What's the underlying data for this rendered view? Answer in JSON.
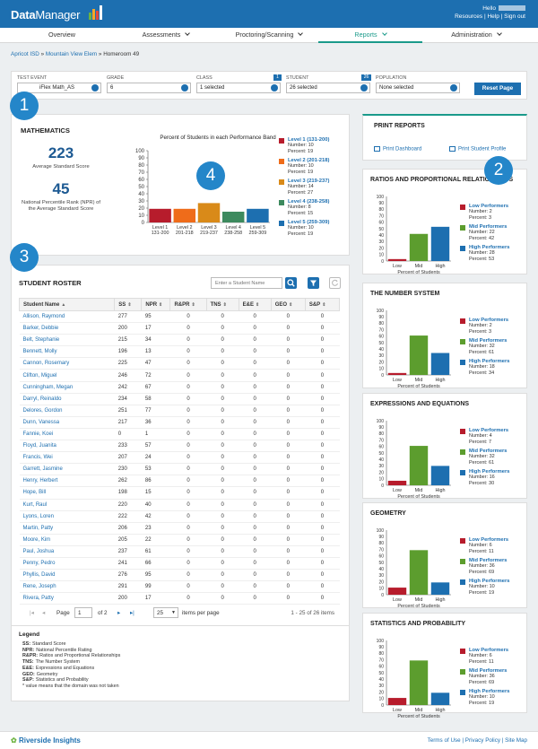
{
  "header": {
    "logo_data": "Data",
    "logo_manager": "Manager",
    "hello": "Hello",
    "links": [
      "Resources",
      "Help",
      "Sign out"
    ]
  },
  "nav": {
    "items": [
      {
        "label": "Overview"
      },
      {
        "label": "Assessments"
      },
      {
        "label": "Proctoring/Scanning"
      },
      {
        "label": "Reports"
      },
      {
        "label": "Administration"
      }
    ],
    "active": "Reports"
  },
  "breadcrumb": {
    "parts": [
      "Apricot ISD",
      "Mountain View Elem",
      "Homeroom 49"
    ],
    "sep": "»"
  },
  "filters": {
    "test_event": {
      "label": "TEST EVENT",
      "value": "iFlex Math_AS"
    },
    "grade": {
      "label": "GRADE",
      "value": "6"
    },
    "class": {
      "label": "CLASS",
      "value": "1 selected",
      "badge": "1"
    },
    "student": {
      "label": "STUDENT",
      "value": "26 selected",
      "badge": "26"
    },
    "population": {
      "label": "POPULATION",
      "value": "None selected"
    },
    "reset_label": "Reset Page"
  },
  "callouts": [
    "1",
    "2",
    "3",
    "4"
  ],
  "math": {
    "title": "MATHEMATICS",
    "avg_score": "223",
    "avg_score_caption": "Average Standard Score",
    "npr": "45",
    "npr_caption": "National Percentile Rank (NPR) of the Average Standard Score",
    "chart_title": "Percent of Students in each Performance Band"
  },
  "chart_data": [
    {
      "type": "bar",
      "title": "Percent of Students in each Performance Band",
      "categories": [
        "Level 1 131-200",
        "Level 2 201-218",
        "Level 3 219-237",
        "Level 4 238-258",
        "Level 5 259-309"
      ],
      "cat_line1": [
        "Level 1",
        "Level 2",
        "Level 3",
        "Level 4",
        "Level 5"
      ],
      "cat_line2": [
        "131-200",
        "201-218",
        "219-237",
        "238-258",
        "259-309"
      ],
      "values": [
        19,
        19,
        27,
        15,
        19
      ],
      "colors": [
        "#b71c2c",
        "#ef6c1a",
        "#d98a19",
        "#3d8a5e",
        "#1d6fb0"
      ],
      "ylim": [
        0,
        100
      ],
      "yticks": [
        0,
        10,
        20,
        30,
        40,
        50,
        60,
        70,
        80,
        90,
        100
      ],
      "legend": [
        {
          "name": "Level 1 (131-200)",
          "number": "Number: 10",
          "percent": "Percent: 19"
        },
        {
          "name": "Level 2 (201-218)",
          "number": "Number: 10",
          "percent": "Percent: 19"
        },
        {
          "name": "Level 3 (219-237)",
          "number": "Number: 14",
          "percent": "Percent: 27"
        },
        {
          "name": "Level 4 (238-258)",
          "number": "Number: 8",
          "percent": "Percent: 15"
        },
        {
          "name": "Level 5 (259-309)",
          "number": "Number: 10",
          "percent": "Percent: 19"
        }
      ]
    },
    {
      "type": "bar",
      "title": "RATIOS AND PROPORTIONAL RELATIONSHIPS",
      "categories": [
        "Low",
        "Mid",
        "High"
      ],
      "values": [
        3,
        42,
        53
      ],
      "xlabel": "Percent of Students",
      "ylim": [
        0,
        100
      ],
      "legend": [
        {
          "name": "Low Performers",
          "number": "Number: 2",
          "percent": "Percent: 3"
        },
        {
          "name": "Mid Performers",
          "number": "Number: 22",
          "percent": "Percent: 42"
        },
        {
          "name": "High Performers",
          "number": "Number: 28",
          "percent": "Percent: 53"
        }
      ]
    },
    {
      "type": "bar",
      "title": "THE NUMBER SYSTEM",
      "categories": [
        "Low",
        "Mid",
        "High"
      ],
      "values": [
        3,
        61,
        34
      ],
      "xlabel": "Percent of Students",
      "ylim": [
        0,
        100
      ],
      "legend": [
        {
          "name": "Low Performers",
          "number": "Number: 2",
          "percent": "Percent: 3"
        },
        {
          "name": "Mid Performers",
          "number": "Number: 32",
          "percent": "Percent: 61"
        },
        {
          "name": "High Performers",
          "number": "Number: 18",
          "percent": "Percent: 34"
        }
      ]
    },
    {
      "type": "bar",
      "title": "EXPRESSIONS AND EQUATIONS",
      "categories": [
        "Low",
        "Mid",
        "High"
      ],
      "values": [
        7,
        61,
        30
      ],
      "xlabel": "Percent of Students",
      "ylim": [
        0,
        100
      ],
      "legend": [
        {
          "name": "Low Performers",
          "number": "Number: 4",
          "percent": "Percent: 7"
        },
        {
          "name": "Mid Performers",
          "number": "Number: 32",
          "percent": "Percent: 61"
        },
        {
          "name": "High Performers",
          "number": "Number: 16",
          "percent": "Percent: 30"
        }
      ]
    },
    {
      "type": "bar",
      "title": "GEOMETRY",
      "categories": [
        "Low",
        "Mid",
        "High"
      ],
      "values": [
        11,
        69,
        19
      ],
      "xlabel": "Percent of Students",
      "ylim": [
        0,
        100
      ],
      "legend": [
        {
          "name": "Low Performers",
          "number": "Number: 6",
          "percent": "Percent: 11"
        },
        {
          "name": "Mid Performers",
          "number": "Number: 36",
          "percent": "Percent: 69"
        },
        {
          "name": "High Performers",
          "number": "Number: 10",
          "percent": "Percent: 19"
        }
      ]
    },
    {
      "type": "bar",
      "title": "STATISTICS AND PROBABILITY",
      "categories": [
        "Low",
        "Mid",
        "High"
      ],
      "values": [
        11,
        69,
        19
      ],
      "xlabel": "Percent of Students",
      "ylim": [
        0,
        100
      ],
      "legend": [
        {
          "name": "Low Performers",
          "number": "Number: 6",
          "percent": "Percent: 11"
        },
        {
          "name": "Mid Performers",
          "number": "Number: 36",
          "percent": "Percent: 69"
        },
        {
          "name": "High Performers",
          "number": "Number: 10",
          "percent": "Percent: 19"
        }
      ]
    }
  ],
  "domain_colors": [
    "#b71c2c",
    "#5c9d2e",
    "#1d6fb0"
  ],
  "print": {
    "title": "PRINT REPORTS",
    "dashboard": "Print Dashboard",
    "profile": "Print Student Profile"
  },
  "roster": {
    "title": "STUDENT ROSTER",
    "search_placeholder": "Enter a Student Name",
    "columns": [
      "Student Name",
      "SS",
      "NPR",
      "R&PR",
      "TNS",
      "E&E",
      "GEO",
      "S&P"
    ],
    "rows": [
      [
        "Allison, Raymond",
        "277",
        "95",
        "0",
        "0",
        "0",
        "0",
        "0"
      ],
      [
        "Barker, Debbie",
        "200",
        "17",
        "0",
        "0",
        "0",
        "0",
        "0"
      ],
      [
        "Belt, Stephanie",
        "215",
        "34",
        "0",
        "0",
        "0",
        "0",
        "0"
      ],
      [
        "Bennett, Molly",
        "196",
        "13",
        "0",
        "0",
        "0",
        "0",
        "0"
      ],
      [
        "Cannon, Rosemary",
        "225",
        "47",
        "0",
        "0",
        "0",
        "0",
        "0"
      ],
      [
        "Clifton, Miguel",
        "246",
        "72",
        "0",
        "0",
        "0",
        "0",
        "0"
      ],
      [
        "Cunningham, Megan",
        "242",
        "67",
        "0",
        "0",
        "0",
        "0",
        "0"
      ],
      [
        "Darryl, Reinaldo",
        "234",
        "58",
        "0",
        "0",
        "0",
        "0",
        "0"
      ],
      [
        "Delores, Gordon",
        "251",
        "77",
        "0",
        "0",
        "0",
        "0",
        "0"
      ],
      [
        "Dunn, Vanessa",
        "217",
        "36",
        "0",
        "0",
        "0",
        "0",
        "0"
      ],
      [
        "Fannie, Koei",
        "0",
        "1",
        "0",
        "0",
        "0",
        "0",
        "0"
      ],
      [
        "Floyd, Juanita",
        "233",
        "57",
        "0",
        "0",
        "0",
        "0",
        "0"
      ],
      [
        "Francis, Wei",
        "207",
        "24",
        "0",
        "0",
        "0",
        "0",
        "0"
      ],
      [
        "Garrett, Jasmine",
        "230",
        "53",
        "0",
        "0",
        "0",
        "0",
        "0"
      ],
      [
        "Henry, Herbert",
        "262",
        "86",
        "0",
        "0",
        "0",
        "0",
        "0"
      ],
      [
        "Hope, Bill",
        "198",
        "15",
        "0",
        "0",
        "0",
        "0",
        "0"
      ],
      [
        "Kurt, Raul",
        "220",
        "40",
        "0",
        "0",
        "0",
        "0",
        "0"
      ],
      [
        "Lyons, Loren",
        "222",
        "42",
        "0",
        "0",
        "0",
        "0",
        "0"
      ],
      [
        "Martin, Patty",
        "206",
        "23",
        "0",
        "0",
        "0",
        "0",
        "0"
      ],
      [
        "Moore, Kim",
        "205",
        "22",
        "0",
        "0",
        "0",
        "0",
        "0"
      ],
      [
        "Paul, Joshua",
        "237",
        "61",
        "0",
        "0",
        "0",
        "0",
        "0"
      ],
      [
        "Penny, Pedro",
        "241",
        "66",
        "0",
        "0",
        "0",
        "0",
        "0"
      ],
      [
        "Phyllis, David",
        "276",
        "95",
        "0",
        "0",
        "0",
        "0",
        "0"
      ],
      [
        "Rene, Joseph",
        "291",
        "99",
        "0",
        "0",
        "0",
        "0",
        "0"
      ],
      [
        "Rivera, Patty",
        "200",
        "17",
        "0",
        "0",
        "0",
        "0",
        "0"
      ]
    ],
    "pager": {
      "page_label": "Page",
      "page": "1",
      "of": "of 2",
      "per_page": "25",
      "per_page_label": "items per page",
      "range": "1 - 25 of 26 items"
    }
  },
  "legend": {
    "title": "Legend",
    "items": [
      [
        "SS:",
        "Standard Score"
      ],
      [
        "NPR:",
        "National Percentile Rating"
      ],
      [
        "R&PR:",
        "Ratios and Proportional Relationships"
      ],
      [
        "TNS:",
        "The Number System"
      ],
      [
        "E&E:",
        "Expressions and Equations"
      ],
      [
        "GEO:",
        "Geometry"
      ],
      [
        "S&P:",
        "Statistics and Probability"
      ]
    ],
    "note": "* value means that the domain was not taken"
  },
  "footer": {
    "brand": "Riverside",
    "brand2": "Insights",
    "links": [
      "Terms of Use",
      "Privacy Policy",
      "Site Map"
    ]
  }
}
